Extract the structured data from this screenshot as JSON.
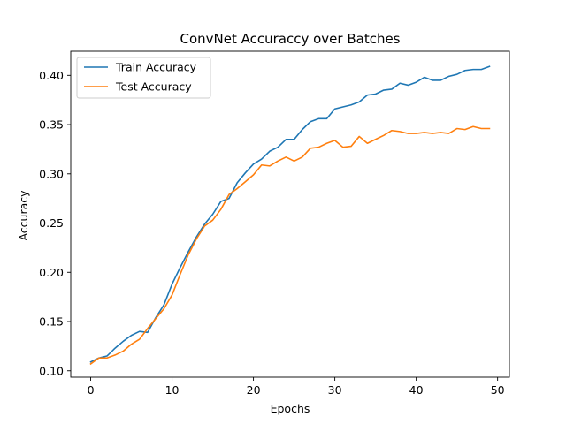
{
  "chart_data": {
    "type": "line",
    "title": "ConvNet Accuraccy over Batches",
    "xlabel": "Epochs",
    "ylabel": "Accuracy",
    "xlim": [
      -2.45,
      51.45
    ],
    "ylim": [
      0.0935,
      0.4245
    ],
    "xticks": [
      0,
      10,
      20,
      30,
      40,
      50
    ],
    "yticks": [
      0.1,
      0.15,
      0.2,
      0.25,
      0.3,
      0.35,
      0.4
    ],
    "ytick_labels": [
      "0.10",
      "0.15",
      "0.20",
      "0.25",
      "0.30",
      "0.35",
      "0.40"
    ],
    "grid": false,
    "legend": "top-left",
    "x": [
      0,
      1,
      2,
      3,
      4,
      5,
      6,
      7,
      8,
      9,
      10,
      11,
      12,
      13,
      14,
      15,
      16,
      17,
      18,
      19,
      20,
      21,
      22,
      23,
      24,
      25,
      26,
      27,
      28,
      29,
      30,
      31,
      32,
      33,
      34,
      35,
      36,
      37,
      38,
      39,
      40,
      41,
      42,
      43,
      44,
      45,
      46,
      47,
      48,
      49
    ],
    "series": [
      {
        "name": "Train Accuracy",
        "color": "#1f77b4",
        "values": [
          0.109,
          0.113,
          0.115,
          0.123,
          0.13,
          0.136,
          0.14,
          0.139,
          0.154,
          0.167,
          0.188,
          0.205,
          0.221,
          0.236,
          0.249,
          0.259,
          0.272,
          0.275,
          0.291,
          0.301,
          0.31,
          0.315,
          0.323,
          0.327,
          0.335,
          0.335,
          0.345,
          0.353,
          0.356,
          0.356,
          0.366,
          0.368,
          0.37,
          0.373,
          0.38,
          0.381,
          0.385,
          0.386,
          0.392,
          0.39,
          0.393,
          0.398,
          0.395,
          0.395,
          0.399,
          0.401,
          0.405,
          0.406,
          0.406,
          0.409
        ]
      },
      {
        "name": "Test Accuracy",
        "color": "#ff7f0e",
        "values": [
          0.107,
          0.113,
          0.113,
          0.116,
          0.12,
          0.127,
          0.132,
          0.143,
          0.153,
          0.163,
          0.177,
          0.198,
          0.218,
          0.234,
          0.247,
          0.253,
          0.264,
          0.279,
          0.285,
          0.292,
          0.299,
          0.309,
          0.308,
          0.313,
          0.317,
          0.313,
          0.317,
          0.326,
          0.327,
          0.331,
          0.334,
          0.327,
          0.328,
          0.338,
          0.331,
          0.335,
          0.339,
          0.344,
          0.343,
          0.341,
          0.341,
          0.342,
          0.341,
          0.342,
          0.341,
          0.346,
          0.345,
          0.348,
          0.346,
          0.346
        ]
      }
    ]
  }
}
